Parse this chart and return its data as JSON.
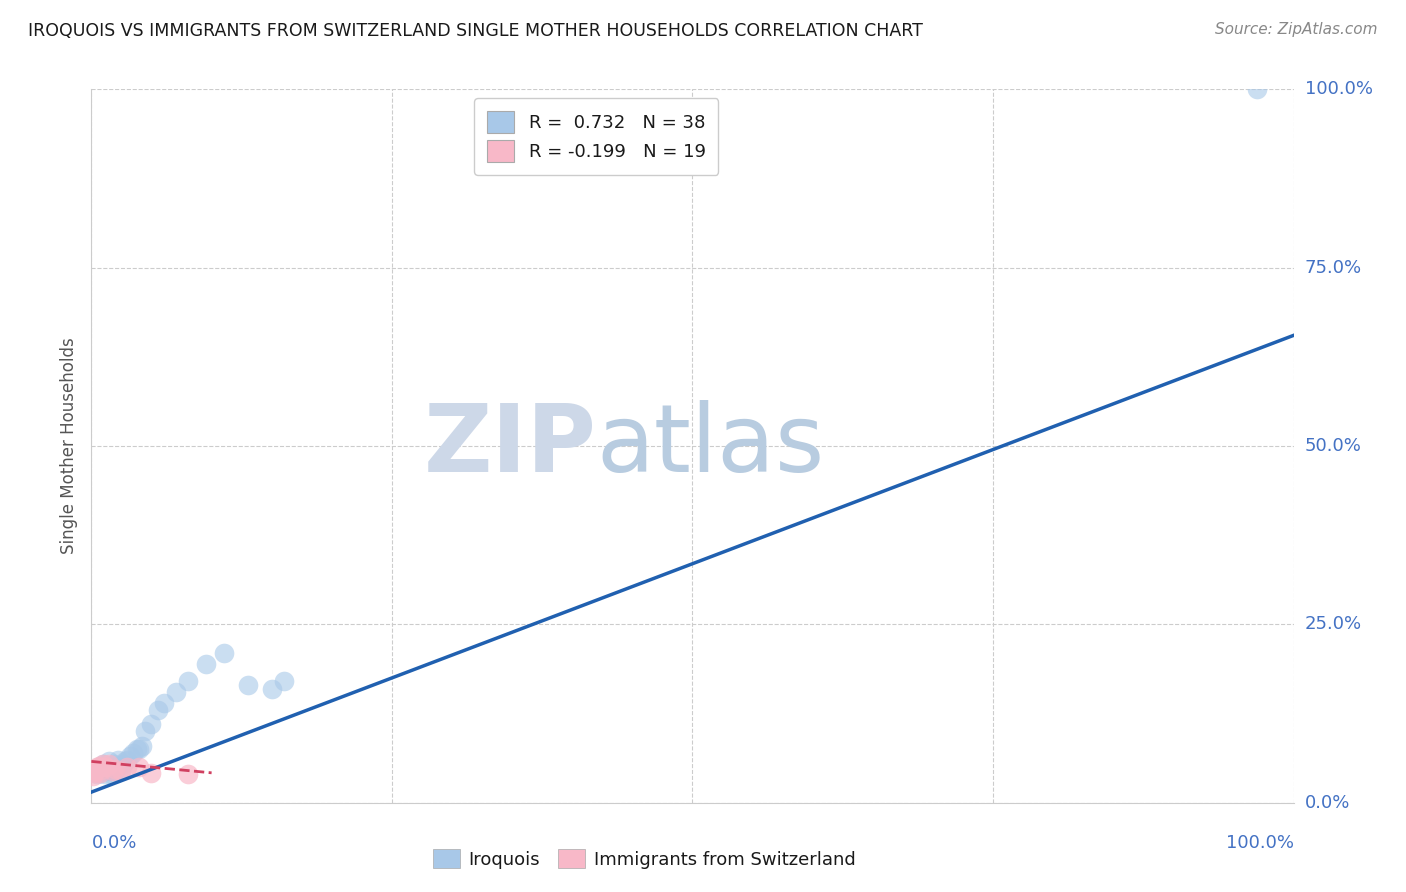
{
  "title": "IROQUOIS VS IMMIGRANTS FROM SWITZERLAND SINGLE MOTHER HOUSEHOLDS CORRELATION CHART",
  "source": "Source: ZipAtlas.com",
  "ylabel": "Single Mother Households",
  "legend_blue_r": "R =  0.732",
  "legend_blue_n": "N = 38",
  "legend_pink_r": "R = -0.199",
  "legend_pink_n": "N = 19",
  "legend_label_blue": "Iroquois",
  "legend_label_pink": "Immigrants from Switzerland",
  "blue_color": "#a8c8e8",
  "blue_line_color": "#2060b0",
  "pink_color": "#f8b8c8",
  "pink_line_color": "#d04060",
  "tick_color": "#4472c4",
  "watermark_zip": "ZIP",
  "watermark_atlas": "atlas",
  "background_color": "#ffffff",
  "iroquois_x": [
    0.005,
    0.007,
    0.008,
    0.009,
    0.01,
    0.011,
    0.012,
    0.013,
    0.014,
    0.015,
    0.016,
    0.017,
    0.018,
    0.019,
    0.02,
    0.021,
    0.022,
    0.025,
    0.026,
    0.028,
    0.03,
    0.032,
    0.035,
    0.038,
    0.04,
    0.042,
    0.045,
    0.05,
    0.055,
    0.06,
    0.07,
    0.08,
    0.095,
    0.11,
    0.13,
    0.15,
    0.16,
    0.97
  ],
  "iroquois_y": [
    0.04,
    0.042,
    0.045,
    0.05,
    0.055,
    0.04,
    0.045,
    0.048,
    0.052,
    0.058,
    0.04,
    0.045,
    0.048,
    0.055,
    0.045,
    0.05,
    0.06,
    0.048,
    0.055,
    0.058,
    0.06,
    0.065,
    0.07,
    0.075,
    0.075,
    0.08,
    0.1,
    0.11,
    0.13,
    0.14,
    0.155,
    0.17,
    0.195,
    0.21,
    0.165,
    0.16,
    0.17,
    1.0
  ],
  "swiss_x": [
    0.001,
    0.002,
    0.003,
    0.004,
    0.005,
    0.006,
    0.007,
    0.008,
    0.009,
    0.01,
    0.012,
    0.015,
    0.018,
    0.02,
    0.025,
    0.03,
    0.04,
    0.05,
    0.08
  ],
  "swiss_y": [
    0.038,
    0.042,
    0.045,
    0.048,
    0.05,
    0.052,
    0.042,
    0.046,
    0.05,
    0.055,
    0.05,
    0.055,
    0.045,
    0.048,
    0.045,
    0.05,
    0.05,
    0.042,
    0.04
  ],
  "blue_line_x": [
    0.0,
    1.0
  ],
  "blue_line_y": [
    0.015,
    0.655
  ],
  "pink_line_x": [
    0.0,
    0.1
  ],
  "pink_line_y": [
    0.058,
    0.042
  ],
  "xlim": [
    0.0,
    1.0
  ],
  "ylim": [
    0.0,
    1.0
  ],
  "ytick_vals": [
    0.0,
    0.25,
    0.5,
    0.75,
    1.0
  ],
  "xtick_vals": [
    0.0,
    0.25,
    0.5,
    0.75,
    1.0
  ]
}
